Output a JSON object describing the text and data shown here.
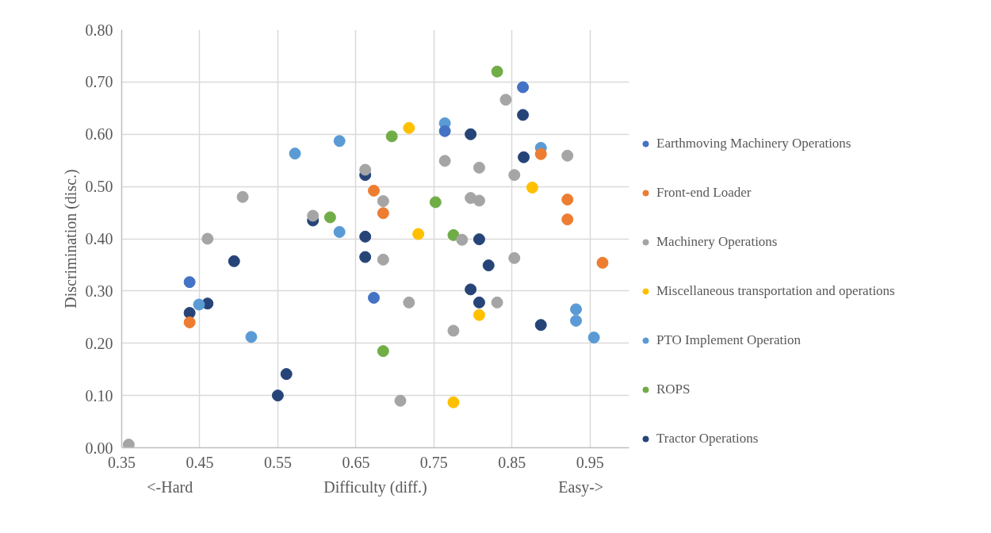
{
  "chart_data": {
    "type": "scatter",
    "xlabel": "Difficulty (diff.)",
    "ylabel": "Discrimination (disc.)",
    "annotations": [
      "<-Hard",
      "Easy->"
    ],
    "xlim": [
      0.35,
      1.0
    ],
    "xticks": [
      0.35,
      0.45,
      0.55,
      0.65,
      0.75,
      0.85,
      0.95
    ],
    "ylim": [
      0,
      0.8
    ],
    "yticks": [
      {
        "value": 0,
        "label": "0.00"
      },
      {
        "value": 0.1,
        "label": "0.10"
      },
      {
        "value": 0.2,
        "label": "0.20"
      },
      {
        "value": 0.3,
        "label": "0.30"
      },
      {
        "value": 0.4,
        "label": "0.40"
      },
      {
        "value": 0.5,
        "label": "0.50"
      },
      {
        "value": 0.6,
        "label": "0.60"
      },
      {
        "value": 0.7,
        "label": "0.70"
      },
      {
        "value": 0.8,
        "label": "0.80"
      }
    ],
    "grid": true,
    "legend": "right",
    "marker": "circle",
    "series": [
      {
        "name": "Earthmoving Machinery Operations",
        "color": "#4472c4",
        "x": [
          0.437,
          0.673,
          0.864,
          0.764
        ],
        "values": [
          0.317,
          0.287,
          0.69,
          0.606
        ]
      },
      {
        "name": "Front-end Loader",
        "color": "#ed7d31",
        "x": [
          0.437,
          0.673,
          0.685,
          0.887,
          0.921,
          0.921,
          0.966
        ],
        "values": [
          0.24,
          0.492,
          0.449,
          0.562,
          0.475,
          0.437,
          0.354
        ]
      },
      {
        "name": "Machinery Operations",
        "color": "#a5a5a5",
        "x": [
          0.359,
          0.46,
          0.505,
          0.595,
          0.662,
          0.685,
          0.685,
          0.707,
          0.718,
          0.764,
          0.775,
          0.786,
          0.797,
          0.808,
          0.808,
          0.831,
          0.842,
          0.853,
          0.853,
          0.921
        ],
        "values": [
          0.006,
          0.4,
          0.48,
          0.444,
          0.532,
          0.472,
          0.36,
          0.09,
          0.278,
          0.549,
          0.224,
          0.398,
          0.478,
          0.473,
          0.536,
          0.278,
          0.666,
          0.522,
          0.363,
          0.559
        ]
      },
      {
        "name": "Miscellaneous transportation and operations",
        "color": "#ffc000",
        "x": [
          0.718,
          0.73,
          0.775,
          0.808,
          0.876
        ],
        "values": [
          0.612,
          0.409,
          0.087,
          0.254,
          0.498
        ]
      },
      {
        "name": "PTO Implement Operation",
        "color": "#5b9bd5",
        "x": [
          0.449,
          0.516,
          0.572,
          0.629,
          0.629,
          0.764,
          0.887,
          0.932,
          0.932,
          0.955
        ],
        "values": [
          0.274,
          0.212,
          0.563,
          0.587,
          0.413,
          0.621,
          0.574,
          0.265,
          0.243,
          0.211
        ]
      },
      {
        "name": "ROPS",
        "color": "#70ad47",
        "x": [
          0.617,
          0.685,
          0.696,
          0.752,
          0.775,
          0.831
        ],
        "values": [
          0.441,
          0.185,
          0.596,
          0.47,
          0.407,
          0.72
        ]
      },
      {
        "name": "Tractor Operations",
        "color": "#264478",
        "x": [
          0.437,
          0.46,
          0.494,
          0.55,
          0.561,
          0.595,
          0.662,
          0.662,
          0.662,
          0.797,
          0.797,
          0.808,
          0.808,
          0.82,
          0.864,
          0.865,
          0.887
        ],
        "values": [
          0.258,
          0.276,
          0.357,
          0.1,
          0.141,
          0.435,
          0.522,
          0.404,
          0.365,
          0.6,
          0.303,
          0.399,
          0.278,
          0.349,
          0.637,
          0.556,
          0.235
        ]
      }
    ]
  }
}
